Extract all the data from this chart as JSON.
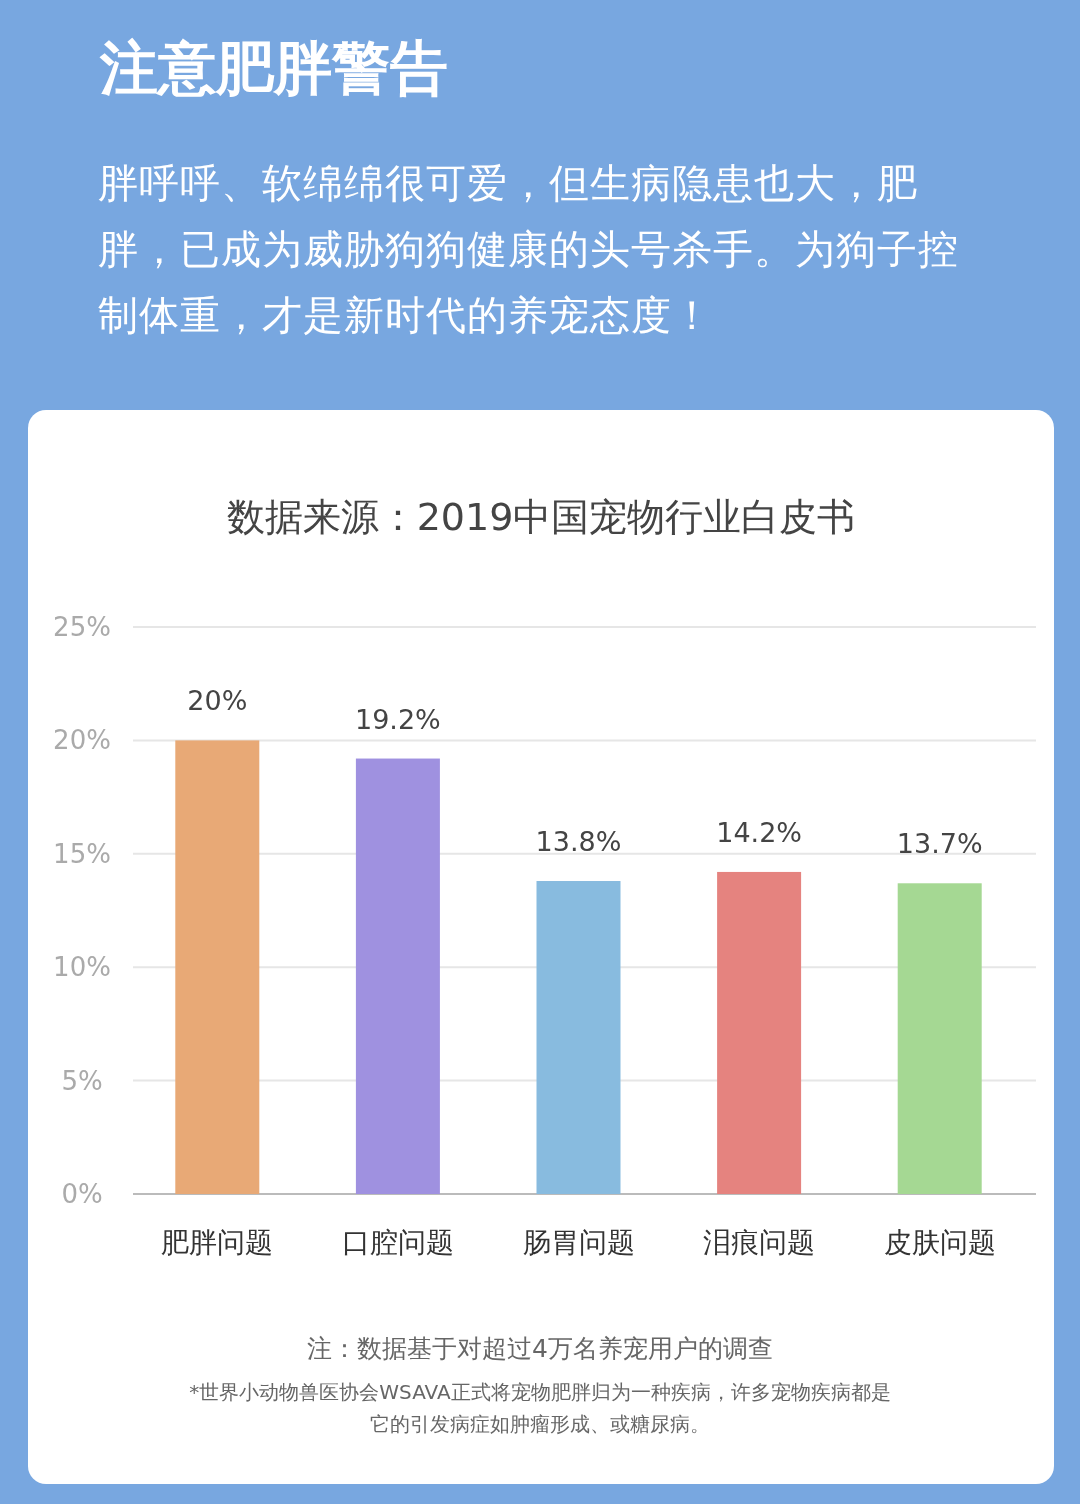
{
  "chart_data": {
    "type": "bar",
    "title": "注意肥胖警告",
    "subtitle": "胖呼呼、软绵绵很可爱，但生病隐患也大，肥胖，已成为威胁狗狗健康的头号杀手。为狗子控制体重，才是新时代的养宠态度！",
    "categories": [
      "肥胖问题",
      "口腔问题",
      "肠胃问题",
      "泪痕问题",
      "皮肤问题"
    ],
    "values": [
      20,
      19.2,
      13.8,
      14.2,
      13.7
    ],
    "value_labels": [
      "20%",
      "19.2%",
      "13.8%",
      "14.2%",
      "13.7%"
    ],
    "colors": [
      "#e8a976",
      "#9f91e0",
      "#88bbdf",
      "#e5837f",
      "#a5d893"
    ],
    "ylim": [
      0,
      25
    ],
    "yticks": [
      {
        "value": 0,
        "label": "0%"
      },
      {
        "value": 5,
        "label": "5%"
      },
      {
        "value": 10,
        "label": "10%"
      },
      {
        "value": 15,
        "label": "15%"
      },
      {
        "value": 20,
        "label": "20%"
      },
      {
        "value": 25,
        "label": "25%"
      }
    ],
    "grid": "y",
    "annotations": [
      "数据来源：2019中国宠物行业白皮书",
      "注：数据基于对超过4万名养宠用户的调查",
      "*世界小动物兽医协会WSAVA正式将宠物肥胖归为一种疾病，许多宠物疾病都是它的引发病症如肿瘤形成、或糖尿病。"
    ]
  }
}
